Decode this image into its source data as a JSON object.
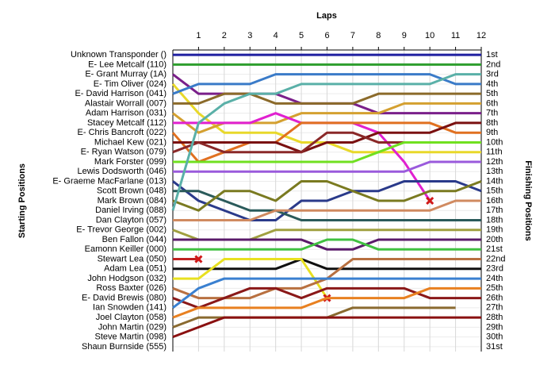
{
  "chart_data": {
    "type": "line",
    "x_label": "Laps",
    "y_label": "Starting Positions",
    "y2_label": "Finishing Positions",
    "x": [
      0,
      1,
      2,
      3,
      4,
      5,
      6,
      7,
      8,
      9,
      10,
      11,
      12
    ],
    "xlim": [
      0,
      12
    ],
    "xticks": [
      1,
      2,
      3,
      4,
      5,
      6,
      7,
      8,
      9,
      10,
      11,
      12
    ],
    "ylim": [
      0.5,
      31.5
    ],
    "y_reversed": true,
    "grid": true,
    "y2ticks": [
      {
        "value": 1,
        "label": "1st"
      },
      {
        "value": 2,
        "label": "2nd"
      },
      {
        "value": 3,
        "label": "3rd"
      },
      {
        "value": 4,
        "label": "4th"
      },
      {
        "value": 5,
        "label": "5th"
      },
      {
        "value": 6,
        "label": "6th"
      },
      {
        "value": 7,
        "label": "7th"
      },
      {
        "value": 8,
        "label": "8th"
      },
      {
        "value": 9,
        "label": "9th"
      },
      {
        "value": 10,
        "label": "10th"
      },
      {
        "value": 11,
        "label": "11th"
      },
      {
        "value": 12,
        "label": "12th"
      },
      {
        "value": 13,
        "label": "13th"
      },
      {
        "value": 14,
        "label": "14th"
      },
      {
        "value": 15,
        "label": "15th"
      },
      {
        "value": 16,
        "label": "16th"
      },
      {
        "value": 17,
        "label": "17th"
      },
      {
        "value": 18,
        "label": "18th"
      },
      {
        "value": 19,
        "label": "19th"
      },
      {
        "value": 20,
        "label": "20th"
      },
      {
        "value": 21,
        "label": "21st"
      },
      {
        "value": 22,
        "label": "22nd"
      },
      {
        "value": 23,
        "label": "23rd"
      },
      {
        "value": 24,
        "label": "24th"
      },
      {
        "value": 25,
        "label": "25th"
      },
      {
        "value": 26,
        "label": "26th"
      },
      {
        "value": 27,
        "label": "27th"
      },
      {
        "value": 28,
        "label": "28th"
      },
      {
        "value": 29,
        "label": "29th"
      },
      {
        "value": 30,
        "label": "30th"
      },
      {
        "value": 31,
        "label": "31st"
      }
    ],
    "series": [
      {
        "name": "Unknown Transponder ()",
        "color": "#1f1fa0",
        "values": [
          1,
          1,
          1,
          1,
          1,
          1,
          1,
          1,
          1,
          1,
          1,
          1,
          1
        ]
      },
      {
        "name": "E- Lee Metcalf (110)",
        "color": "#2e9e2e",
        "values": [
          2,
          2,
          2,
          2,
          2,
          2,
          2,
          2,
          2,
          2,
          2,
          2,
          2
        ]
      },
      {
        "name": "E- Grant Murray (1A)",
        "color": "#7a1f8a",
        "values": [
          3,
          5,
          5,
          5,
          5,
          6,
          6,
          6,
          7,
          7,
          7,
          7,
          7
        ]
      },
      {
        "name": "E- Tim Oliver (024)",
        "color": "#e8d82a",
        "values": [
          4,
          7,
          9,
          9,
          9,
          10,
          10,
          11,
          11,
          11,
          11,
          11,
          11
        ]
      },
      {
        "name": "E- David Harrison (041)",
        "color": "#3a7bc8",
        "values": [
          5,
          4,
          4,
          4,
          3,
          3,
          3,
          3,
          3,
          3,
          3,
          4,
          4
        ]
      },
      {
        "name": "Alastair Worrall (007)",
        "color": "#8b6a2a",
        "values": [
          6,
          6,
          5,
          5,
          6,
          6,
          6,
          6,
          5,
          5,
          5,
          5,
          5
        ]
      },
      {
        "name": "Adam Harrison (031)",
        "color": "#d4a030",
        "values": [
          7,
          9,
          8,
          8,
          8,
          7,
          7,
          7,
          7,
          6,
          6,
          6,
          6
        ]
      },
      {
        "name": "Stacey Metcalf (112)",
        "color": "#e020d0",
        "retired": true,
        "values": [
          8,
          8,
          8,
          8,
          7,
          8,
          8,
          8,
          9,
          12,
          16,
          null,
          null
        ]
      },
      {
        "name": "E- Chris Bancroft (022)",
        "color": "#e07020",
        "values": [
          9,
          12,
          11,
          10,
          10,
          8,
          8,
          8,
          8,
          8,
          8,
          9,
          9
        ]
      },
      {
        "name": "Michael Kew (021)",
        "color": "#7a1010",
        "values": [
          10,
          10,
          10,
          10,
          10,
          11,
          10,
          10,
          9,
          9,
          9,
          8,
          8
        ]
      },
      {
        "name": "E- Ryan Watson (079)",
        "color": "#8a2828",
        "values": [
          11,
          10,
          11,
          11,
          11,
          11,
          9,
          9,
          10,
          10,
          10,
          10,
          10
        ]
      },
      {
        "name": "Mark Forster (099)",
        "color": "#70e020",
        "values": [
          12,
          12,
          12,
          12,
          12,
          12,
          12,
          12,
          11,
          10,
          10,
          10,
          10
        ]
      },
      {
        "name": "Lewis Dodsworth (046)",
        "color": "#9a5adc",
        "values": [
          13,
          13,
          13,
          13,
          13,
          13,
          13,
          13,
          13,
          13,
          12,
          12,
          12
        ]
      },
      {
        "name": "E- Graeme MacFarlane (013)",
        "color": "#2a3a8a",
        "values": [
          14,
          16,
          17,
          18,
          18,
          16,
          16,
          15,
          15,
          14,
          14,
          14,
          15
        ]
      },
      {
        "name": "Scott Brown (048)",
        "color": "#2a5a5a",
        "values": [
          15,
          15,
          16,
          17,
          17,
          18,
          18,
          18,
          18,
          18,
          18,
          18,
          18
        ]
      },
      {
        "name": "Mark Brown (084)",
        "color": "#7a7a20",
        "values": [
          16,
          17,
          15,
          15,
          16,
          14,
          14,
          15,
          16,
          16,
          15,
          15,
          14
        ]
      },
      {
        "name": "Daniel Irving (088)",
        "color": "#5ab0a8",
        "values": [
          17,
          8,
          6,
          5,
          5,
          4,
          4,
          4,
          4,
          4,
          4,
          3,
          3
        ]
      },
      {
        "name": "Dan Clayton (057)",
        "color": "#d08a60",
        "values": [
          18,
          18,
          18,
          18,
          17,
          17,
          17,
          17,
          17,
          17,
          17,
          16,
          16
        ]
      },
      {
        "name": "E- Trevor George (002)",
        "color": "#a0a040",
        "values": [
          19,
          20,
          20,
          20,
          19,
          19,
          19,
          19,
          19,
          19,
          19,
          19,
          19
        ]
      },
      {
        "name": "Ben Fallon (044)",
        "color": "#5a1a6a",
        "values": [
          20,
          20,
          20,
          20,
          20,
          20,
          21,
          21,
          20,
          20,
          20,
          20,
          20
        ]
      },
      {
        "name": "Eamonn Keiller (000)",
        "color": "#40c040",
        "values": [
          21,
          21,
          21,
          21,
          21,
          21,
          20,
          20,
          21,
          21,
          21,
          21,
          21
        ]
      },
      {
        "name": "Stewart Lea (050)",
        "color": "#c02020",
        "retired": true,
        "values": [
          22,
          22,
          null,
          null,
          null,
          null,
          null,
          null,
          null,
          null,
          null,
          null,
          null
        ]
      },
      {
        "name": "Adam Lea (051)",
        "color": "#101010",
        "values": [
          23,
          23,
          23,
          23,
          23,
          22,
          23,
          23,
          23,
          23,
          23,
          23,
          23
        ]
      },
      {
        "name": "John Hodgson (032)",
        "color": "#e8e020",
        "retired": true,
        "values": [
          24,
          24,
          22,
          22,
          22,
          22,
          26,
          null,
          null,
          null,
          null,
          null,
          null
        ]
      },
      {
        "name": "Ross Baxter (026)",
        "color": "#b87040",
        "values": [
          25,
          26,
          26,
          26,
          25,
          25,
          24,
          22,
          22,
          22,
          22,
          22,
          22
        ]
      },
      {
        "name": "E- David Brewis (080)",
        "color": "#8a1818",
        "values": [
          26,
          27,
          26,
          25,
          25,
          26,
          25,
          25,
          25,
          25,
          26,
          26,
          26
        ]
      },
      {
        "name": "Ian Snowden (141)",
        "color": "#3a80d0",
        "values": [
          27,
          25,
          24,
          24,
          24,
          24,
          24,
          24,
          24,
          24,
          24,
          24,
          24
        ]
      },
      {
        "name": "Joel Clayton (058)",
        "color": "#e88020",
        "values": [
          28,
          27,
          27,
          27,
          27,
          27,
          26,
          26,
          26,
          26,
          25,
          25,
          25
        ]
      },
      {
        "name": "John Martin (029)",
        "color": "#8a6a30",
        "values": [
          29,
          28,
          28,
          28,
          28,
          28,
          28,
          27,
          27,
          27,
          27,
          27,
          null
        ]
      },
      {
        "name": "Steve Martin (098)",
        "color": "#8a1010",
        "values": [
          30,
          29,
          28,
          28,
          28,
          28,
          28,
          28,
          28,
          28,
          28,
          28,
          28
        ]
      },
      {
        "name": "Shaun Burnside (555)",
        "color": "#555555",
        "values": [
          31,
          null,
          null,
          null,
          null,
          null,
          null,
          null,
          null,
          null,
          null,
          null,
          null
        ]
      }
    ]
  }
}
